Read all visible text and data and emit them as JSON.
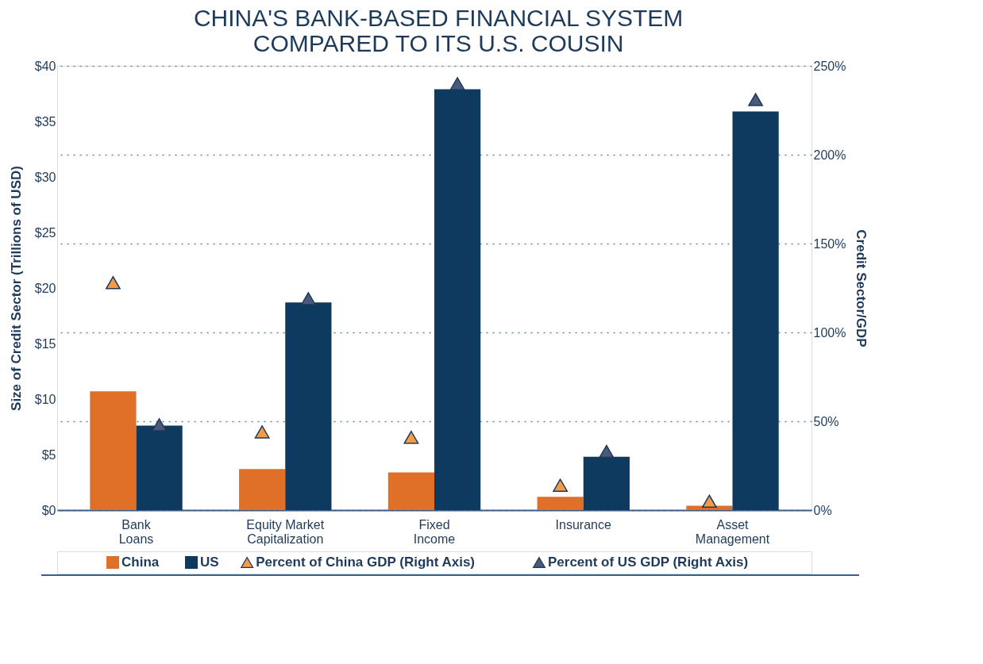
{
  "chart_data": {
    "type": "bar",
    "title": [
      "CHINA'S BANK-BASED FINANCIAL SYSTEM",
      "COMPARED TO ITS U.S. COUSIN"
    ],
    "ylabel": "Size of Credit Sector  (Trillions of USD)",
    "y2label": "Credit Sector/GDP",
    "categories": [
      "Bank\nLoans",
      "Equity Market\nCapitalization",
      "Fixed\nIncome",
      "Insurance",
      "Asset\nManagement"
    ],
    "series": [
      {
        "name": "China",
        "color": "#e07028",
        "values": [
          10.7,
          3.7,
          3.4,
          1.2,
          0.4
        ]
      },
      {
        "name": "US",
        "color": "#0e3a5f",
        "values": [
          7.6,
          18.7,
          37.9,
          4.8,
          35.9
        ]
      },
      {
        "name": "Percent of China GDP (Right Axis)",
        "type": "scatter",
        "axis": "y2",
        "marker": "triangle",
        "color": "#f39c48",
        "values": [
          128,
          44,
          41,
          14,
          5
        ]
      },
      {
        "name": "Percent of US GDP (Right Axis)",
        "type": "scatter",
        "axis": "y2",
        "marker": "triangle",
        "color": "#4a5a7a",
        "values": [
          48,
          119,
          240,
          33,
          231
        ]
      }
    ],
    "ylim": [
      0,
      40
    ],
    "yticks": [
      {
        "value": 0,
        "label": "$0"
      },
      {
        "value": 5,
        "label": "$5"
      },
      {
        "value": 10,
        "label": "$10"
      },
      {
        "value": 15,
        "label": "$15"
      },
      {
        "value": 20,
        "label": "$20"
      },
      {
        "value": 25,
        "label": "$25"
      },
      {
        "value": 30,
        "label": "$30"
      },
      {
        "value": 35,
        "label": "$35"
      },
      {
        "value": 40,
        "label": "$40"
      }
    ],
    "y2lim": [
      0,
      250
    ],
    "y2ticks": [
      {
        "value": 0,
        "label": "0%"
      },
      {
        "value": 50,
        "label": "50%"
      },
      {
        "value": 100,
        "label": "100%"
      },
      {
        "value": 150,
        "label": "150%"
      },
      {
        "value": 200,
        "label": "200%"
      },
      {
        "value": 250,
        "label": "250%"
      }
    ],
    "grid": "y2",
    "legend": "bottom"
  }
}
